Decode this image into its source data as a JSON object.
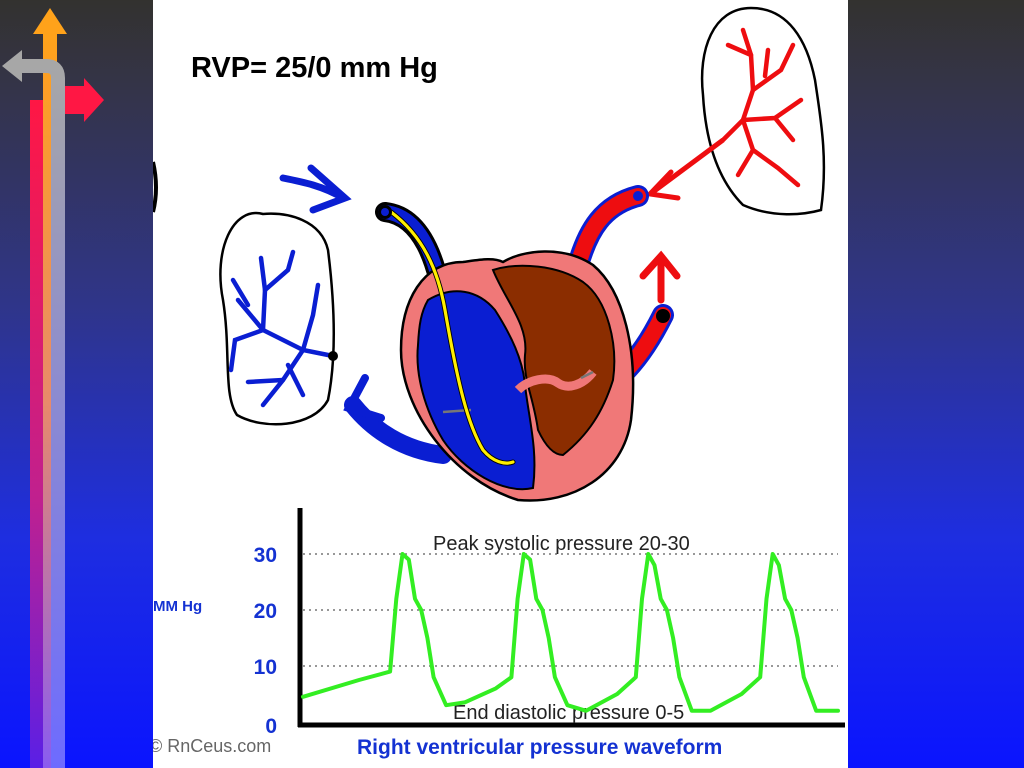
{
  "slide": {
    "title": "RVP= 25/0 mm Hg"
  },
  "colors": {
    "deoxygenated_blue": "#0a1ed2",
    "oxygenated_red": "#ee0d10",
    "heart_pink": "#f07878",
    "left_ventricle_brown": "#8b2d00",
    "catheter_yellow": "#ffee00",
    "waveform_green": "#33ee22",
    "axis_label_blue": "#1432d2"
  },
  "icons": [
    "up-arrow-icon",
    "left-arrow-icon",
    "right-arrow-icon"
  ],
  "chart_data": {
    "type": "line",
    "title": "Right ventricular pressure waveform",
    "ylabel": "MM Hg",
    "xlabel": "",
    "yticks": [
      "0",
      "10",
      "20",
      "30"
    ],
    "ylim": [
      0,
      32
    ],
    "grid": "dotted horizontal at 10, 20, 30",
    "annotations": [
      {
        "text": "Peak systolic pressure 20-30"
      },
      {
        "text": "End diastolic pressure 0-5"
      }
    ],
    "watermark": "© RnCeus.com",
    "series": [
      {
        "color": "#33ee22",
        "x": [
          0,
          0.9,
          1.4,
          1.5,
          1.6,
          1.7,
          1.8,
          1.9,
          2.0,
          2.1,
          2.3,
          2.6,
          3.1,
          3.35,
          3.45,
          3.55,
          3.65,
          3.75,
          3.85,
          3.95,
          4.05,
          4.25,
          4.55,
          5.05,
          5.35,
          5.45,
          5.55,
          5.65,
          5.75,
          5.85,
          5.95,
          6.05,
          6.25,
          6.55,
          7.05,
          7.35,
          7.45,
          7.55,
          7.65,
          7.75,
          7.85,
          7.95,
          8.05,
          8.25,
          8.6
        ],
        "y": [
          4.5,
          7.5,
          9,
          22,
          30,
          29,
          22,
          20,
          15,
          8,
          3,
          3.5,
          6,
          8,
          22,
          30,
          29,
          22,
          20,
          15,
          8,
          3,
          2,
          5,
          8,
          22,
          30,
          28,
          22,
          20,
          15,
          8,
          2,
          2,
          5,
          8,
          22,
          30,
          28,
          22,
          20,
          15,
          8,
          2,
          2
        ]
      }
    ]
  }
}
